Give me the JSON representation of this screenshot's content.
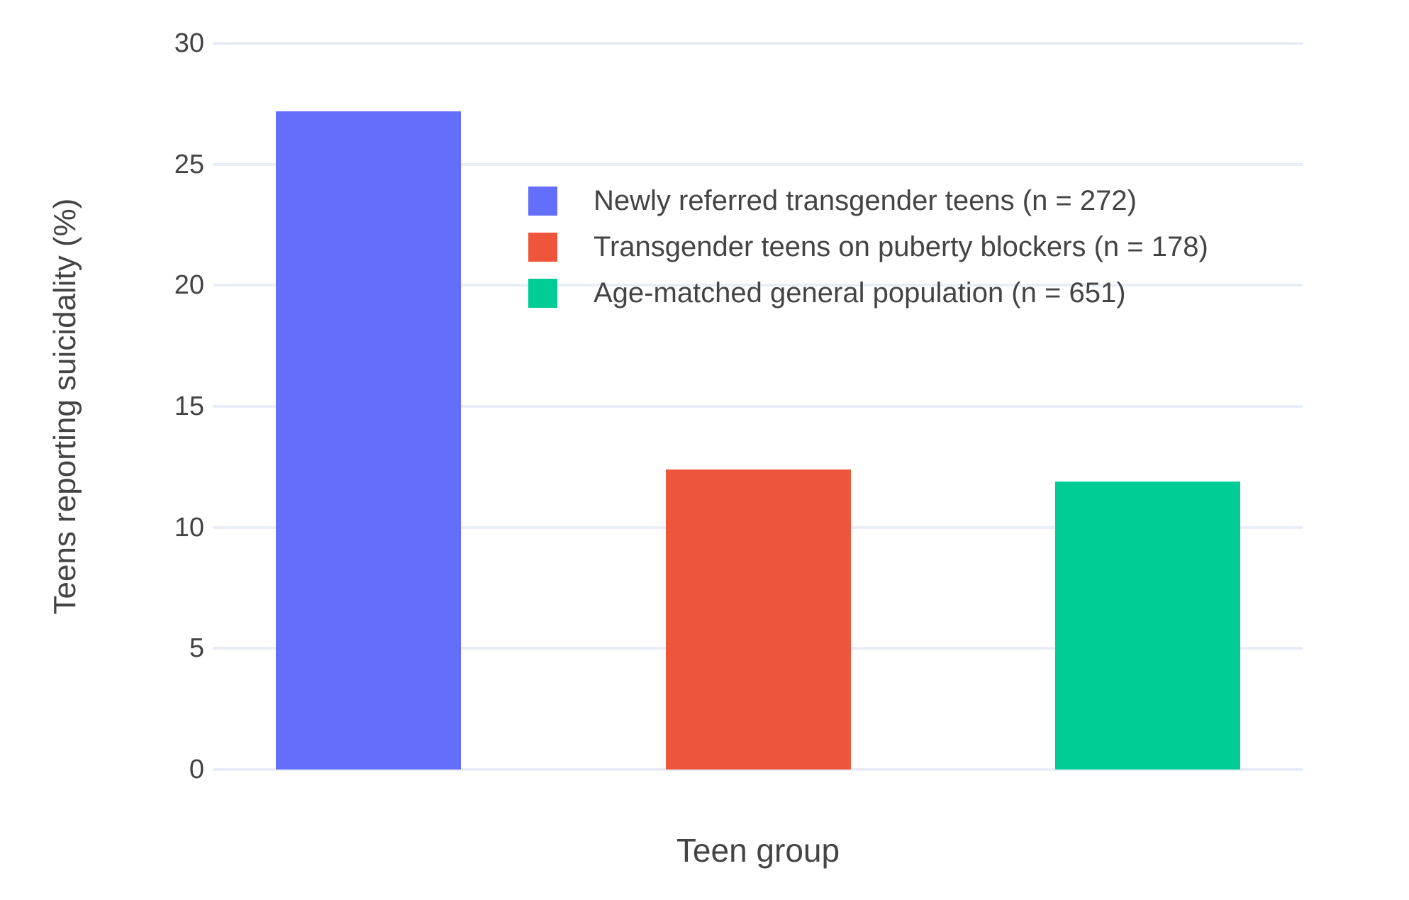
{
  "chart_data": {
    "type": "bar",
    "title": "",
    "xlabel": "Teen group",
    "ylabel": "Teens reporting suicidality (%)",
    "categories": [
      "Newly referred transgender teens (n = 272)",
      "Transgender teens on puberty blockers (n = 178)",
      "Age-matched general population (n = 651)"
    ],
    "series": [
      {
        "name": "Newly referred transgender teens (n = 272)",
        "value": 27.2,
        "color": "#636EFA"
      },
      {
        "name": "Transgender teens on puberty blockers (n = 178)",
        "value": 12.4,
        "color": "#EF553B"
      },
      {
        "name": "Age-matched general population (n = 651)",
        "value": 11.9,
        "color": "#00CC96"
      }
    ],
    "ylim": [
      0,
      30
    ],
    "yticks": [
      0,
      5,
      10,
      15,
      20,
      25,
      30
    ],
    "grid": true,
    "legend_position": "inside-top-center",
    "colors": {
      "background": "#FFFFFF",
      "gridline": "#E9EEF6",
      "text": "#444444"
    }
  }
}
